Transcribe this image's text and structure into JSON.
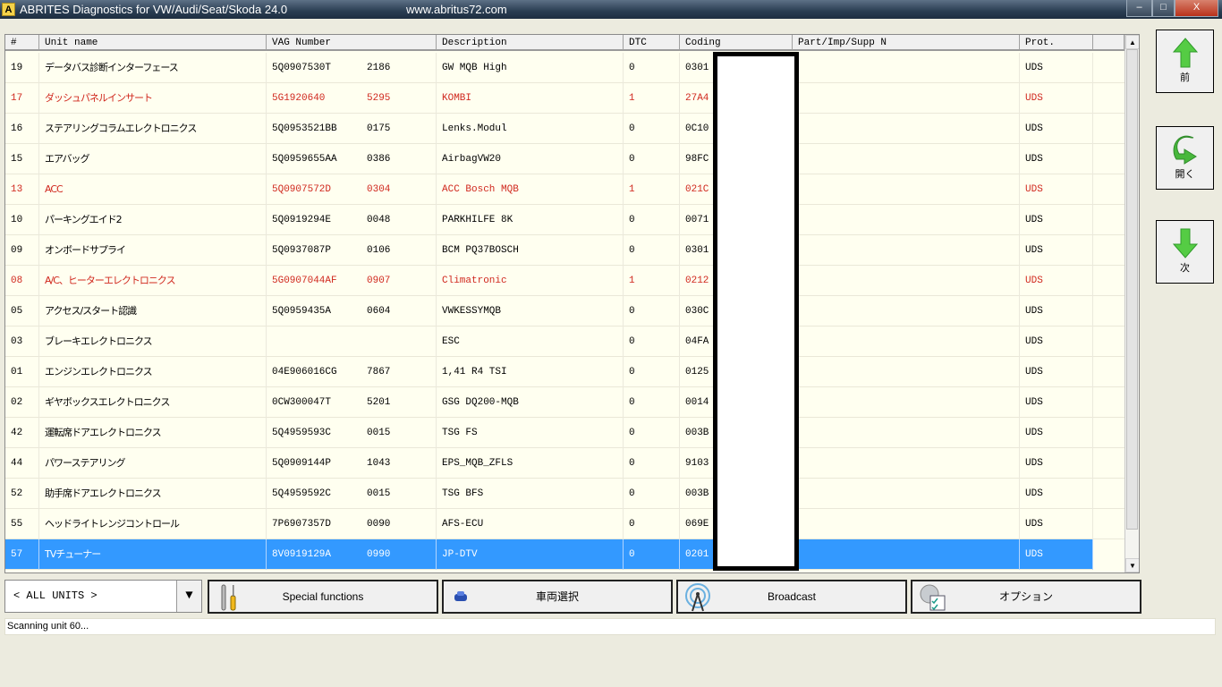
{
  "window": {
    "app_icon": "A",
    "title": "ABRITES Diagnostics for VW/Audi/Seat/Skoda 24.0",
    "url": "www.abritus72.com",
    "minimize": "–",
    "maximize": "□",
    "close": "X"
  },
  "table": {
    "columns": [
      "#",
      "Unit name",
      "VAG Number",
      "Description",
      "DTC",
      "Coding",
      "Part/Imp/Supp N",
      "Prot."
    ],
    "rows": [
      {
        "num": "19",
        "name": "データバス診断インターフェース",
        "vag": "5Q0907530T",
        "sw": "2186",
        "desc": "GW MQB High",
        "dtc": "0",
        "coding": "0301",
        "prot": "UDS",
        "state": "normal"
      },
      {
        "num": "17",
        "name": "ダッシュパネルインサート",
        "vag": "5G1920640",
        "sw": "5295",
        "desc": "KOMBI",
        "dtc": "1",
        "coding": "27A4",
        "prot": "UDS",
        "state": "error"
      },
      {
        "num": "16",
        "name": "ステアリングコラムエレクトロニクス",
        "vag": "5Q0953521BB",
        "sw": "0175",
        "desc": "Lenks.Modul",
        "dtc": "0",
        "coding": "0C10",
        "prot": "UDS",
        "state": "normal"
      },
      {
        "num": "15",
        "name": "エアバッグ",
        "vag": "5Q0959655AA",
        "sw": "0386",
        "desc": "AirbagVW20",
        "dtc": "0",
        "coding": "98FC",
        "prot": "UDS",
        "state": "normal"
      },
      {
        "num": "13",
        "name": "ACC",
        "vag": "5Q0907572D",
        "sw": "0304",
        "desc": "ACC Bosch MQB",
        "dtc": "1",
        "coding": "021C",
        "prot": "UDS",
        "state": "error"
      },
      {
        "num": "10",
        "name": "パーキングエイド2",
        "vag": "5Q0919294E",
        "sw": "0048",
        "desc": "PARKHILFE 8K",
        "dtc": "0",
        "coding": "0071",
        "prot": "UDS",
        "state": "normal"
      },
      {
        "num": "09",
        "name": "オンボードサプライ",
        "vag": "5Q0937087P",
        "sw": "0106",
        "desc": "BCM PQ37BOSCH",
        "dtc": "0",
        "coding": "0301",
        "prot": "UDS",
        "state": "normal"
      },
      {
        "num": "08",
        "name": "A/C、ヒーターエレクトロニクス",
        "vag": "5G0907044AF",
        "sw": "0907",
        "desc": "Climatronic",
        "dtc": "1",
        "coding": "0212",
        "prot": "UDS",
        "state": "error"
      },
      {
        "num": "05",
        "name": "アクセス/スタート認識",
        "vag": "5Q0959435A",
        "sw": "0604",
        "desc": "VWKESSYMQB",
        "dtc": "0",
        "coding": "030C",
        "prot": "UDS",
        "state": "normal"
      },
      {
        "num": "03",
        "name": "ブレーキエレクトロニクス",
        "vag": "",
        "sw": "",
        "desc": "ESC",
        "dtc": "0",
        "coding": "04FA",
        "prot": "UDS",
        "state": "normal"
      },
      {
        "num": "01",
        "name": "エンジンエレクトロニクス",
        "vag": "04E906016CG",
        "sw": "7867",
        "desc": "1,41 R4 TSI",
        "dtc": "0",
        "coding": "0125",
        "prot": "UDS",
        "state": "normal"
      },
      {
        "num": "02",
        "name": "ギヤボックスエレクトロニクス",
        "vag": "0CW300047T",
        "sw": "5201",
        "desc": "GSG DQ200-MQB",
        "dtc": "0",
        "coding": "0014",
        "prot": "UDS",
        "state": "normal"
      },
      {
        "num": "42",
        "name": "運転席ドアエレクトロニクス",
        "vag": "5Q4959593C",
        "sw": "0015",
        "desc": "TSG FS",
        "dtc": "0",
        "coding": "003B",
        "prot": "UDS",
        "state": "normal"
      },
      {
        "num": "44",
        "name": "パワーステアリング",
        "vag": "5Q0909144P",
        "sw": "1043",
        "desc": "EPS_MQB_ZFLS",
        "dtc": "0",
        "coding": "9103",
        "prot": "UDS",
        "state": "normal"
      },
      {
        "num": "52",
        "name": "助手席ドアエレクトロニクス",
        "vag": "5Q4959592C",
        "sw": "0015",
        "desc": "TSG BFS",
        "dtc": "0",
        "coding": "003B",
        "prot": "UDS",
        "state": "normal"
      },
      {
        "num": "55",
        "name": "ヘッドライトレンジコントロール",
        "vag": "7P6907357D",
        "sw": "0090",
        "desc": "AFS-ECU",
        "dtc": "0",
        "coding": "069E",
        "prot": "UDS",
        "state": "normal"
      },
      {
        "num": "57",
        "name": "TVチューナー",
        "vag": "8V0919129A",
        "sw": "0990",
        "desc": "JP-DTV",
        "dtc": "0",
        "coding": "0201",
        "prot": "UDS",
        "state": "selected"
      }
    ]
  },
  "nav": {
    "prev": {
      "label": "前",
      "icon": "arrow-up-icon"
    },
    "open": {
      "label": "開く",
      "icon": "curved-arrow-icon"
    },
    "next": {
      "label": "次",
      "icon": "arrow-down-icon"
    }
  },
  "toolbar": {
    "unit_filter": "< ALL UNITS >",
    "special_functions": "Special functions",
    "vehicle_select": "車両選択",
    "broadcast": "Broadcast",
    "options": "オプション"
  },
  "status": "Scanning unit 60...",
  "colors": {
    "error": "#d0281e",
    "selected": "#3399ff",
    "row_bg": "#fffff0",
    "arrow_green": "#4cc94c"
  }
}
